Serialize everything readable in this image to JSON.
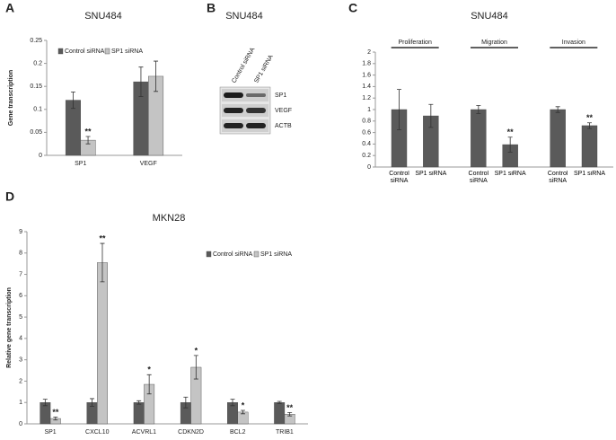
{
  "chart_data": [
    {
      "type": "bar",
      "panel": "A",
      "title": "SNU484",
      "y_label": "Gene transcription",
      "categories": [
        "SP1",
        "VEGF"
      ],
      "series": [
        {
          "name": "Control siRNA",
          "color": "#5a5a5a",
          "values": [
            0.12,
            0.16
          ],
          "errors": [
            0.018,
            0.032
          ],
          "annotations": [
            null,
            null
          ]
        },
        {
          "name": "SP1 siRNA",
          "color": "#c4c4c4",
          "values": [
            0.033,
            0.172
          ],
          "errors": [
            0.008,
            0.033
          ],
          "annotations": [
            "**",
            null
          ]
        }
      ],
      "ylim": [
        0,
        0.25
      ],
      "yticks": [
        0,
        0.05,
        0.1,
        0.15,
        0.2,
        0.25
      ],
      "legend": "top"
    },
    {
      "type": "bar",
      "panel": "C",
      "title": "SNU484",
      "groups": [
        "Proliferation",
        "Migration",
        "Invasion"
      ],
      "categories": [
        "Control siRNA",
        "SP1 siRNA",
        "Control siRNA",
        "SP1 siRNA",
        "Control siRNA",
        "SP1 siRNA"
      ],
      "color": "#5a5a5a",
      "values": [
        1,
        0.89,
        1,
        0.39,
        1,
        0.72
      ],
      "errors": [
        0.35,
        0.2,
        0.07,
        0.13,
        0.05,
        0.05
      ],
      "annotations": [
        null,
        null,
        null,
        "**",
        null,
        "**"
      ],
      "ylim": [
        0,
        2
      ],
      "yticks": [
        0,
        0.2,
        0.4,
        0.6,
        0.8,
        1,
        1.2,
        1.4,
        1.6,
        1.8,
        2
      ]
    },
    {
      "type": "bar",
      "panel": "D",
      "title": "MKN28",
      "y_label": "Relative gene transcription",
      "categories": [
        "SP1",
        "CXCL10",
        "ACVRL1",
        "CDKN2D",
        "BCL2",
        "TRIB1"
      ],
      "series": [
        {
          "name": "Control siRNA",
          "color": "#5a5a5a",
          "values": [
            1,
            1,
            1,
            1,
            1,
            1
          ],
          "errors": [
            0.15,
            0.18,
            0.08,
            0.25,
            0.15,
            0.05
          ],
          "annotations": [
            null,
            null,
            null,
            null,
            null,
            null
          ]
        },
        {
          "name": "SP1 siRNA",
          "color": "#c4c4c4",
          "values": [
            0.25,
            7.55,
            1.85,
            2.65,
            0.55,
            0.45
          ],
          "errors": [
            0.07,
            0.9,
            0.45,
            0.55,
            0.08,
            0.08
          ],
          "annotations": [
            "**",
            "**",
            "*",
            "*",
            "*",
            "**"
          ]
        }
      ],
      "ylim": [
        0,
        9
      ],
      "yticks": [
        0,
        1,
        2,
        3,
        4,
        5,
        6,
        7,
        8,
        9
      ],
      "legend": "top"
    }
  ],
  "blot": {
    "panel": "B",
    "title": "SNU484",
    "lanes": [
      "Control siRNA",
      "SP1 siRNA"
    ],
    "bands": [
      "SP1",
      "VEGF",
      "ACTB"
    ]
  }
}
